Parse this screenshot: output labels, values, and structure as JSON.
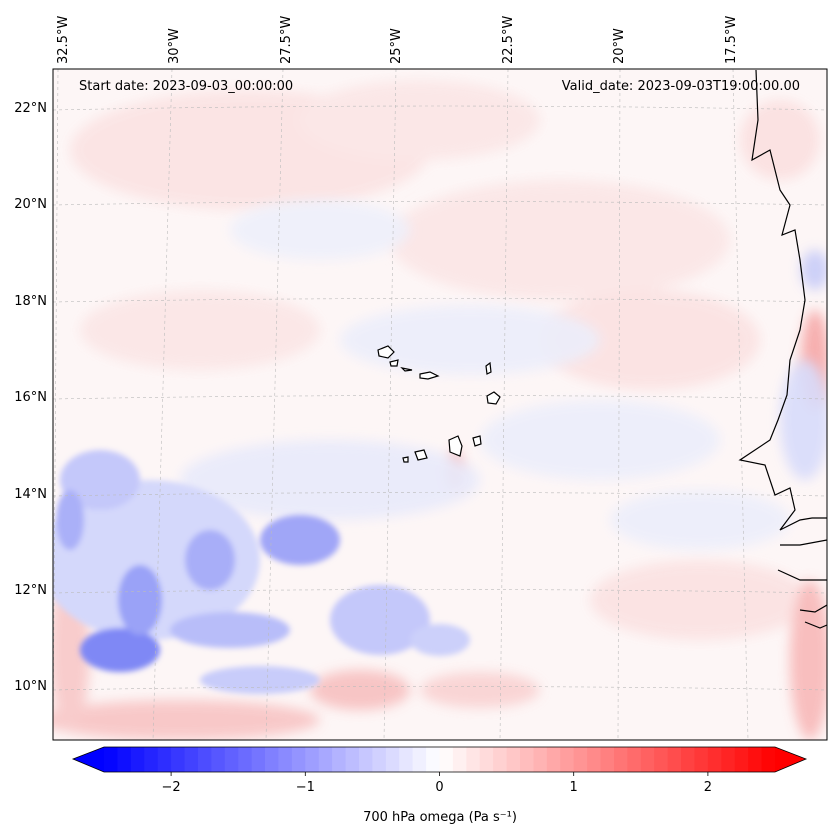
{
  "map": {
    "start_date": "Start date: 2023-09-03_00:00:00",
    "valid_date": "Valid_date: 2023-09-03T19:00:00.00",
    "lon_labels": [
      "32.5°W",
      "30°W",
      "27.5°W",
      "25°W",
      "22.5°W",
      "20°W",
      "17.5°W"
    ],
    "lat_labels": [
      "22°N",
      "20°N",
      "18°N",
      "16°N",
      "14°N",
      "12°N",
      "10°N"
    ],
    "lon_extent": [
      -32.8,
      -15.5
    ],
    "lat_extent": [
      8.8,
      22.8
    ],
    "coastline_color": "#000000",
    "gridline_color": "#bbbbbb"
  },
  "colorbar": {
    "label": "700 hPa omega (Pa s⁻¹)",
    "ticks": [
      "−2",
      "−1",
      "0",
      "1",
      "2"
    ],
    "tick_values": [
      -2,
      -1,
      0,
      1,
      2
    ],
    "range": [
      -2.5,
      2.5
    ],
    "extend": "both",
    "cmap": "bwr",
    "low_color": "#0000ff",
    "mid_color": "#ffffff",
    "high_color": "#ff0000"
  }
}
